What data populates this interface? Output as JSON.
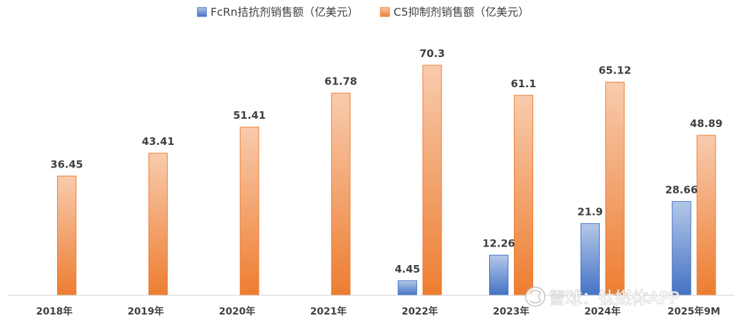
{
  "chart_data": {
    "type": "bar",
    "categories": [
      "2018年",
      "2019年",
      "2020年",
      "2021年",
      "2022年",
      "2023年",
      "2024年",
      "2025年9M"
    ],
    "series": [
      {
        "name": "FcRn拮抗剂销售额（亿美元）",
        "values": [
          null,
          null,
          null,
          null,
          4.45,
          12.26,
          21.9,
          28.66
        ],
        "color": "#4472c4"
      },
      {
        "name": "C5抑制剂销售额（亿美元）",
        "values": [
          36.45,
          43.41,
          51.41,
          61.78,
          70.3,
          61.1,
          65.12,
          48.89
        ],
        "color": "#ed7d31"
      }
    ],
    "data_labels": [
      [
        "",
        "",
        "",
        "",
        "4.45",
        "12.26",
        "21.9",
        "28.66"
      ],
      [
        "36.45",
        "43.41",
        "51.41",
        "61.78",
        "70.3",
        "61.1",
        "65.12",
        "48.89"
      ]
    ],
    "ylim": [
      0,
      80
    ],
    "grid": false,
    "legend_position": "top-center"
  },
  "watermark": {
    "icon": "snowball-logo-icon",
    "text": "雪球：钛媒体APP"
  }
}
